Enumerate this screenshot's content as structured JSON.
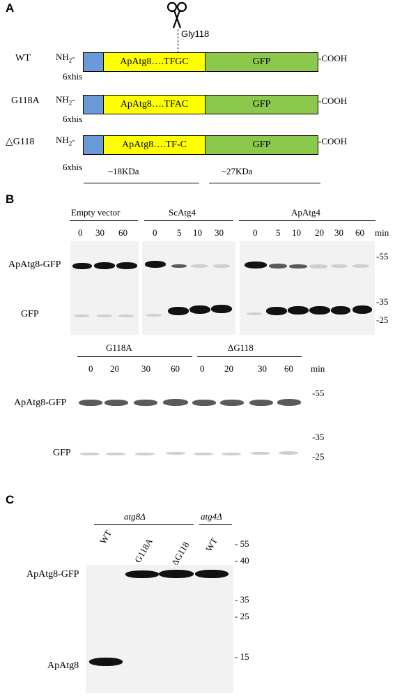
{
  "panelA": {
    "letter": "A",
    "cut_site": "Gly118",
    "nh2": "NH",
    "nh2_sub": "2",
    "nh2_dash": "-",
    "cooh": "-COOH",
    "his_label": "6xhis",
    "gfp_label": "GFP",
    "rows": [
      {
        "name": "WT",
        "atg_seq": "ApAtg8….TFGC"
      },
      {
        "name": "G118A",
        "atg_seq": "ApAtg8….TFAC"
      },
      {
        "name": "△G118",
        "atg_seq": "ApAtg8….TF-C"
      }
    ],
    "size_atg": "~18KDa",
    "size_gfp": "~27KDa"
  },
  "panelB": {
    "letter": "B",
    "groups_top": [
      "Empty vector",
      "ScAtg4",
      "ApAtg4"
    ],
    "times_empty": [
      "0",
      "30",
      "60"
    ],
    "times_scatg4": [
      "0",
      "5",
      "10",
      "30"
    ],
    "times_apatg4": [
      "0",
      "5",
      "10",
      "20",
      "30",
      "60"
    ],
    "groups_bottom": [
      "G118A",
      "ΔG118"
    ],
    "times_g118a": [
      "0",
      "20",
      "30",
      "60"
    ],
    "times_dg118": [
      "0",
      "20",
      "30",
      "60"
    ],
    "unit": "min",
    "band_fusion": "ApAtg8-GFP",
    "band_gfp": "GFP",
    "markers": [
      "-55",
      "-35",
      "-25"
    ]
  },
  "panelC": {
    "letter": "C",
    "strain1": "atg8Δ",
    "strain2": "atg4Δ",
    "lanes": [
      "WT",
      "G118A",
      "ΔG118",
      "WT"
    ],
    "band_fusion": "ApAtg8-GFP",
    "band_atg8": "ApAtg8",
    "markers": [
      "- 55",
      "- 40",
      "- 35",
      "- 25",
      "- 15"
    ]
  }
}
